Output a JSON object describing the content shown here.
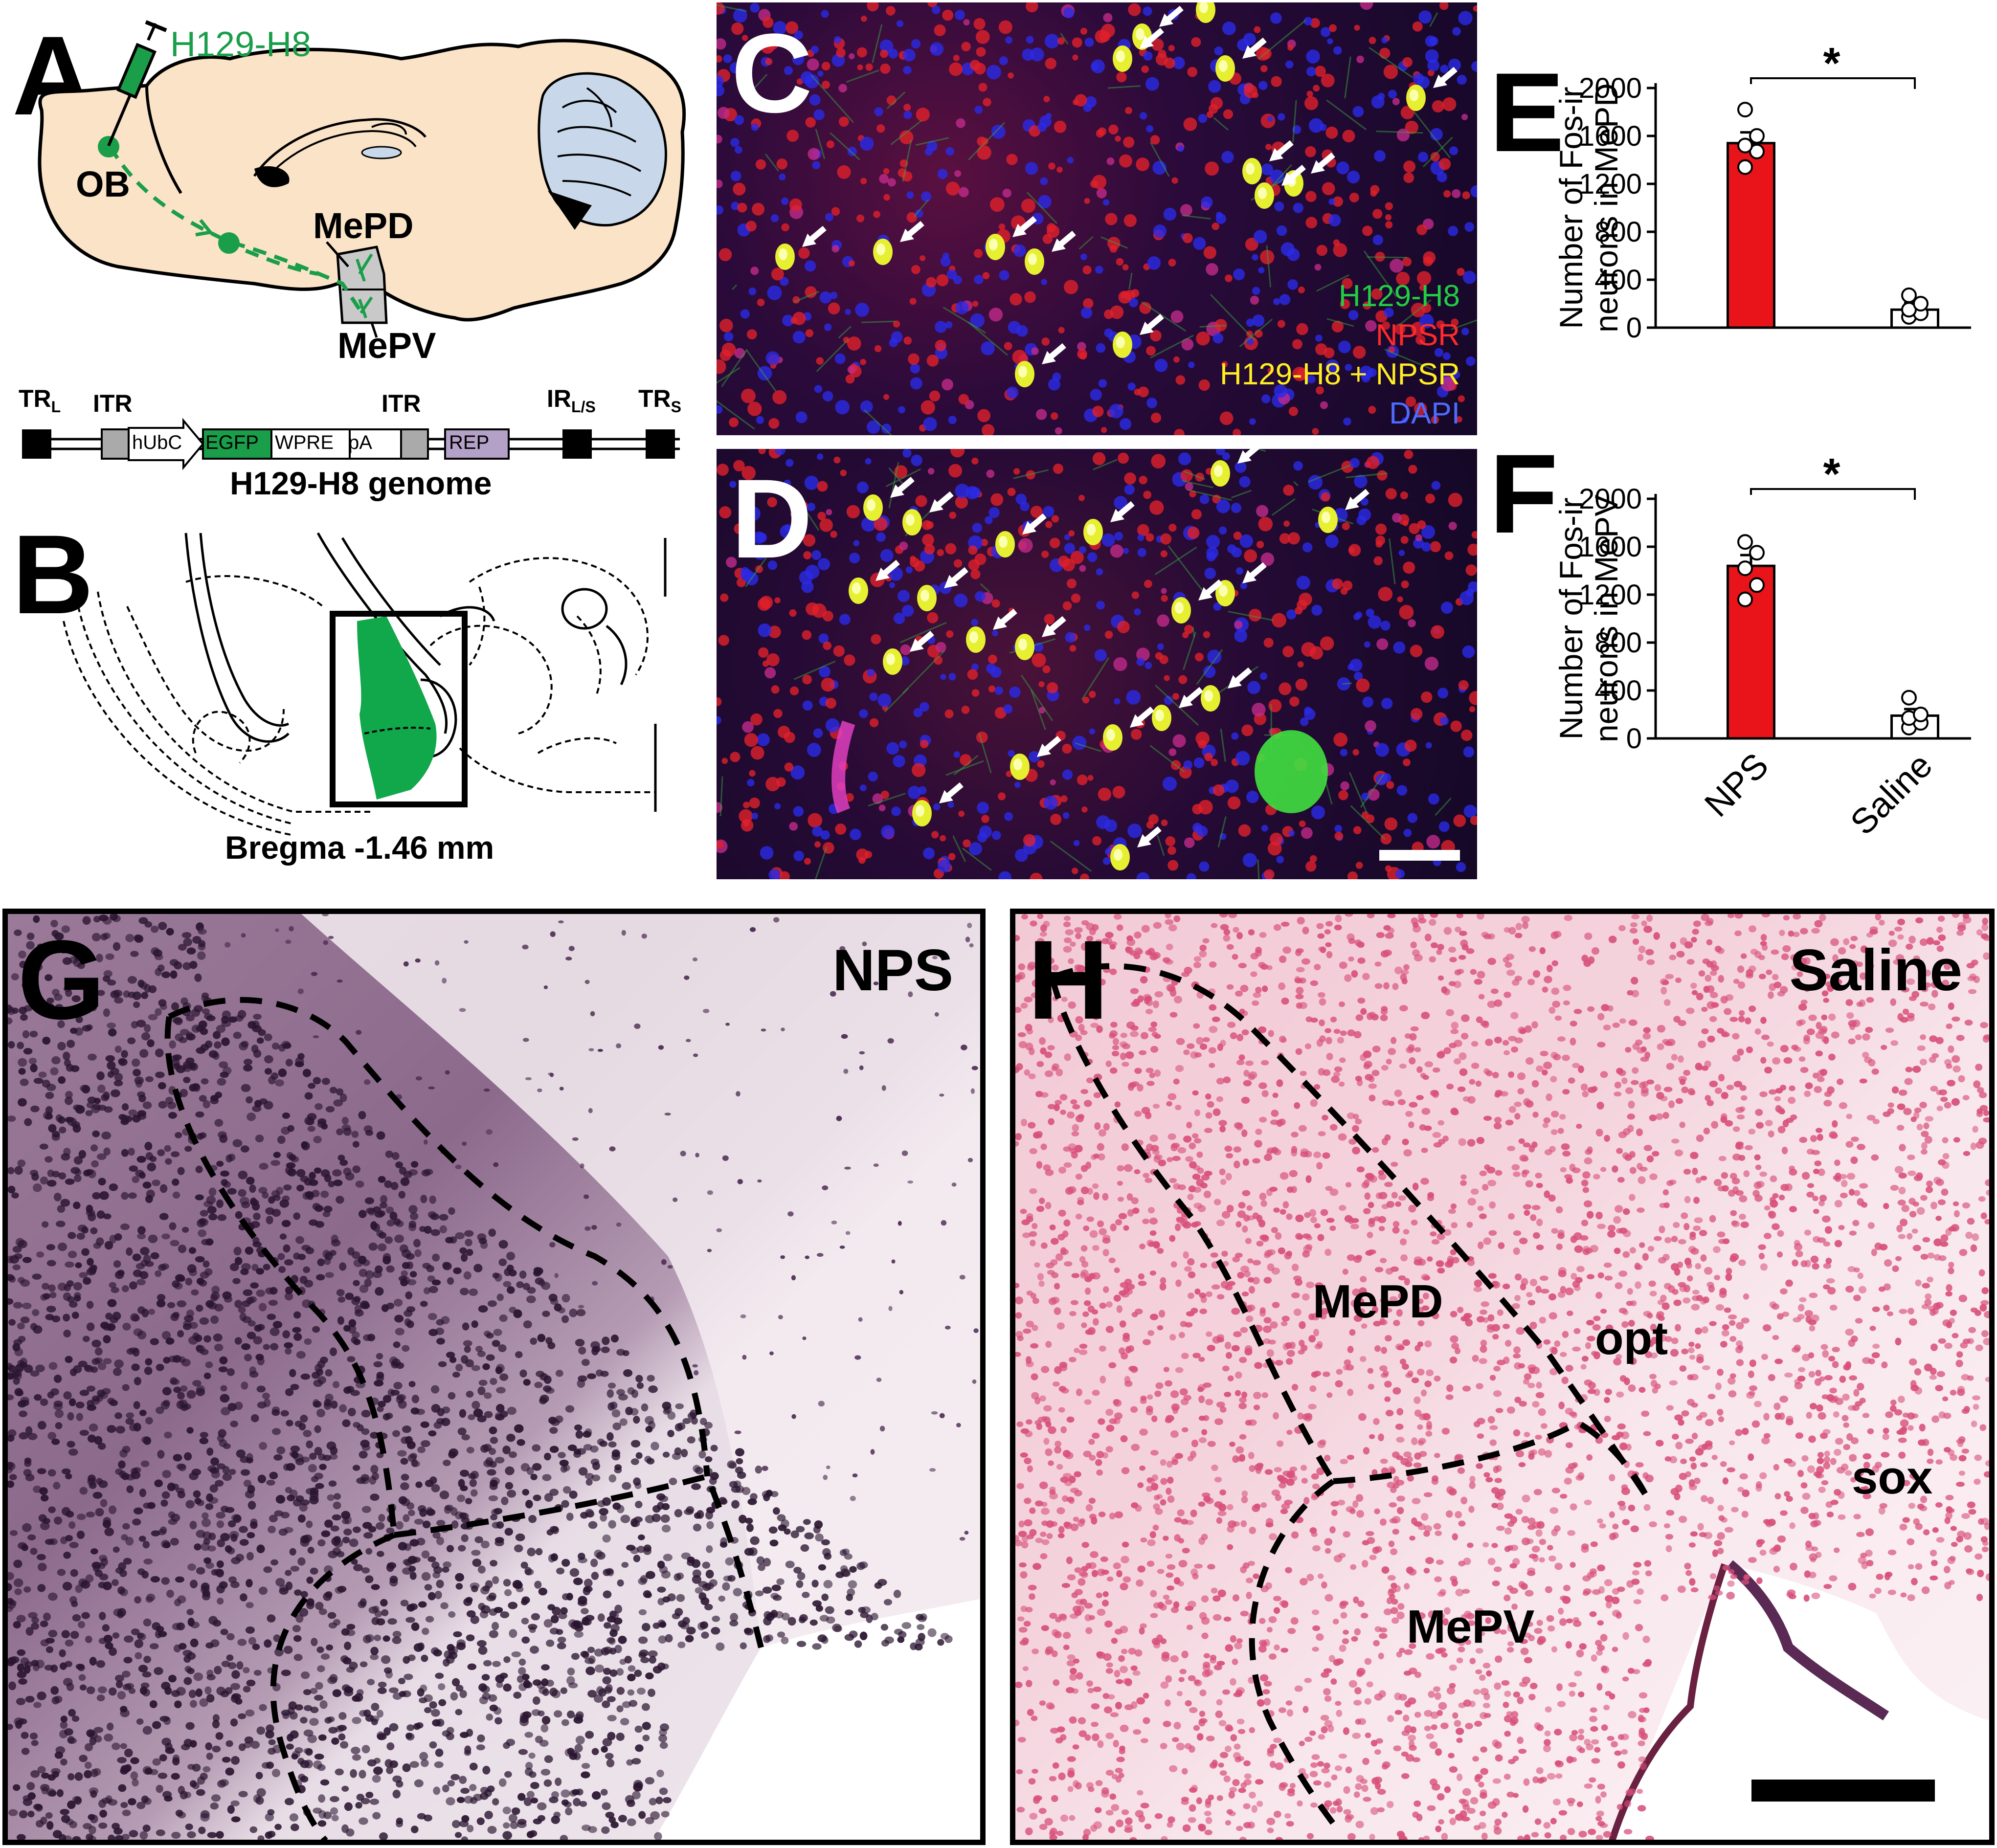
{
  "panels": {
    "A": {
      "label": "A",
      "virus": "H129-H8",
      "ob": "OB",
      "mepd": "MePD",
      "mepv": "MePV"
    },
    "genome": {
      "trl": "TR",
      "trl_sub": "L",
      "itr1": "ITR",
      "hubc": "hUbC",
      "egfp": "EGFP",
      "wpre": "WPRE",
      "pa": "pA",
      "itr2": "ITR",
      "irls": "IR",
      "irls_sub": "L/S",
      "rep": "REP",
      "trs": "TR",
      "trs_sub": "S",
      "title": "H129-H8 genome"
    },
    "B": {
      "label": "B",
      "bregma": "Bregma -1.46 mm"
    },
    "C": {
      "label": "C",
      "legend": [
        "H129-H8",
        "NPSR",
        "H129-H8 + NPSR",
        "DAPI"
      ]
    },
    "D": {
      "label": "D"
    },
    "E": {
      "label": "E",
      "star": "*"
    },
    "F": {
      "label": "F",
      "star": "*"
    },
    "G": {
      "label": "G",
      "condition": "NPS"
    },
    "H": {
      "label": "H",
      "condition": "Saline",
      "mepd": "MePD",
      "mepv": "MePV",
      "opt": "opt",
      "sox": "sox"
    }
  },
  "colors": {
    "egfp": "#1a9e4a",
    "legend_green": "#22cc44",
    "legend_red": "#ff2a2a",
    "legend_yellow": "#ffee22",
    "legend_blue": "#4d6bff",
    "bar_nps": "#e8141a",
    "bar_saline": "#ffffff",
    "mouse": "#fbe3c8",
    "green_region": "#10a84a"
  },
  "chart_data": [
    {
      "type": "bar",
      "panel": "E",
      "categories": [
        "NPS",
        "Saline"
      ],
      "values": [
        1540,
        150
      ],
      "ylabel": "Number of Fos-ir neurons in MePD",
      "ylabel_lines": [
        "Number of Fos-ir",
        "neurons in MePD"
      ],
      "ylim": [
        0,
        2000
      ],
      "yticks": [
        "0",
        "400",
        "800",
        "1200",
        "1600",
        "2000"
      ],
      "points": [
        [
          1340,
          1470,
          1520,
          1600,
          1820
        ],
        [
          90,
          120,
          150,
          200,
          270
        ]
      ],
      "significance": "*"
    },
    {
      "type": "bar",
      "panel": "F",
      "categories": [
        "NPS",
        "Saline"
      ],
      "values": [
        1440,
        190
      ],
      "ylabel": "Number of Fos-ir neurons in MePV",
      "ylabel_lines": [
        "Number of Fos-ir",
        "neurons in MePV"
      ],
      "ylim": [
        0,
        2000
      ],
      "yticks": [
        "0",
        "400",
        "800",
        "1200",
        "1600",
        "2000"
      ],
      "points": [
        [
          1160,
          1280,
          1420,
          1550,
          1640
        ],
        [
          90,
          130,
          170,
          200,
          340
        ]
      ],
      "significance": "*"
    }
  ]
}
